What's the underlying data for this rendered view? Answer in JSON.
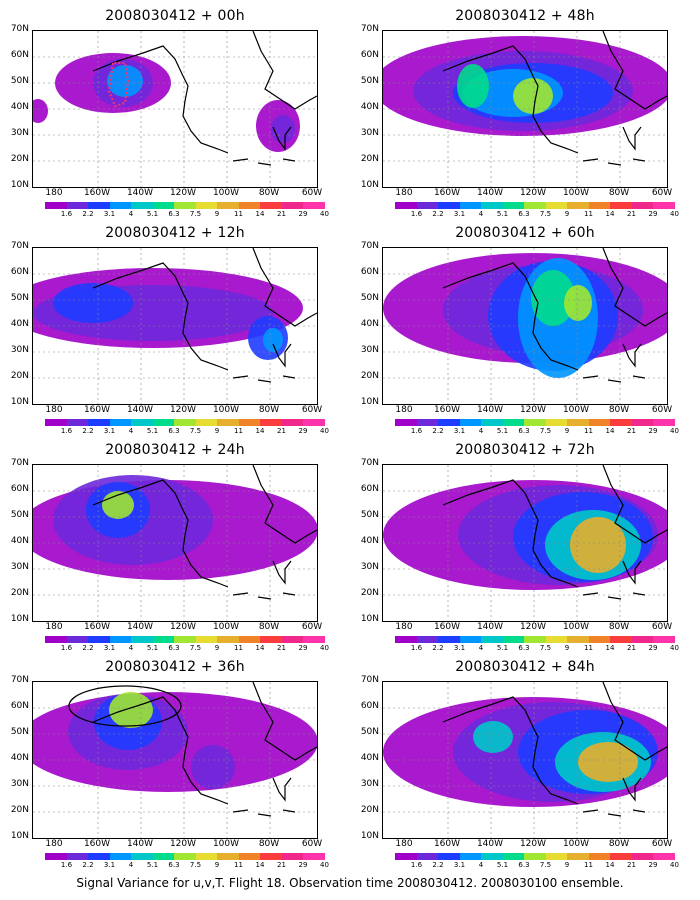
{
  "panels": [
    {
      "title": "2008030412 + 00h"
    },
    {
      "title": "2008030412 + 48h"
    },
    {
      "title": "2008030412 + 12h"
    },
    {
      "title": "2008030412 + 60h"
    },
    {
      "title": "2008030412 + 24h"
    },
    {
      "title": "2008030412 + 72h"
    },
    {
      "title": "2008030412 + 36h"
    },
    {
      "title": "2008030412 + 84h"
    }
  ],
  "x_ticks": [
    "180",
    "160W",
    "140W",
    "120W",
    "100W",
    "80W",
    "60W"
  ],
  "y_ticks": [
    "70N",
    "60N",
    "50N",
    "40N",
    "30N",
    "20N",
    "10N"
  ],
  "colorbar": {
    "labels": [
      "1.6",
      "2.2",
      "3.1",
      "4",
      "5.1",
      "6.3",
      "7.5",
      "9",
      "11",
      "14",
      "21",
      "29",
      "40"
    ],
    "colors": [
      "#a000c8",
      "#6e28dc",
      "#1e3cff",
      "#0096ff",
      "#00c8c8",
      "#00dc8c",
      "#a0e632",
      "#e6dc32",
      "#e6af2d",
      "#f08228",
      "#fa3c3c",
      "#f0288c",
      "#ff33aa"
    ]
  },
  "footer": "Signal Variance for u,v,T. Flight 18. Observation time 2008030412. 2008030100 ensemble.",
  "chart_data": [
    {
      "type": "heatmap",
      "title": "2008030412 + 00h",
      "xlim": [
        170,
        60
      ],
      "ylim": [
        10,
        70
      ],
      "grid": true
    },
    {
      "type": "heatmap",
      "title": "2008030412 + 48h",
      "xlim": [
        170,
        60
      ],
      "ylim": [
        10,
        70
      ],
      "grid": true
    },
    {
      "type": "heatmap",
      "title": "2008030412 + 12h",
      "xlim": [
        170,
        60
      ],
      "ylim": [
        10,
        70
      ],
      "grid": true
    },
    {
      "type": "heatmap",
      "title": "2008030412 + 60h",
      "xlim": [
        170,
        60
      ],
      "ylim": [
        10,
        70
      ],
      "grid": true
    },
    {
      "type": "heatmap",
      "title": "2008030412 + 24h",
      "xlim": [
        170,
        60
      ],
      "ylim": [
        10,
        70
      ],
      "grid": true
    },
    {
      "type": "heatmap",
      "title": "2008030412 + 72h",
      "xlim": [
        170,
        60
      ],
      "ylim": [
        10,
        70
      ],
      "grid": true
    },
    {
      "type": "heatmap",
      "title": "2008030412 + 36h",
      "xlim": [
        170,
        60
      ],
      "ylim": [
        10,
        70
      ],
      "grid": true
    },
    {
      "type": "heatmap",
      "title": "2008030412 + 84h",
      "xlim": [
        170,
        60
      ],
      "ylim": [
        10,
        70
      ],
      "grid": true
    }
  ]
}
